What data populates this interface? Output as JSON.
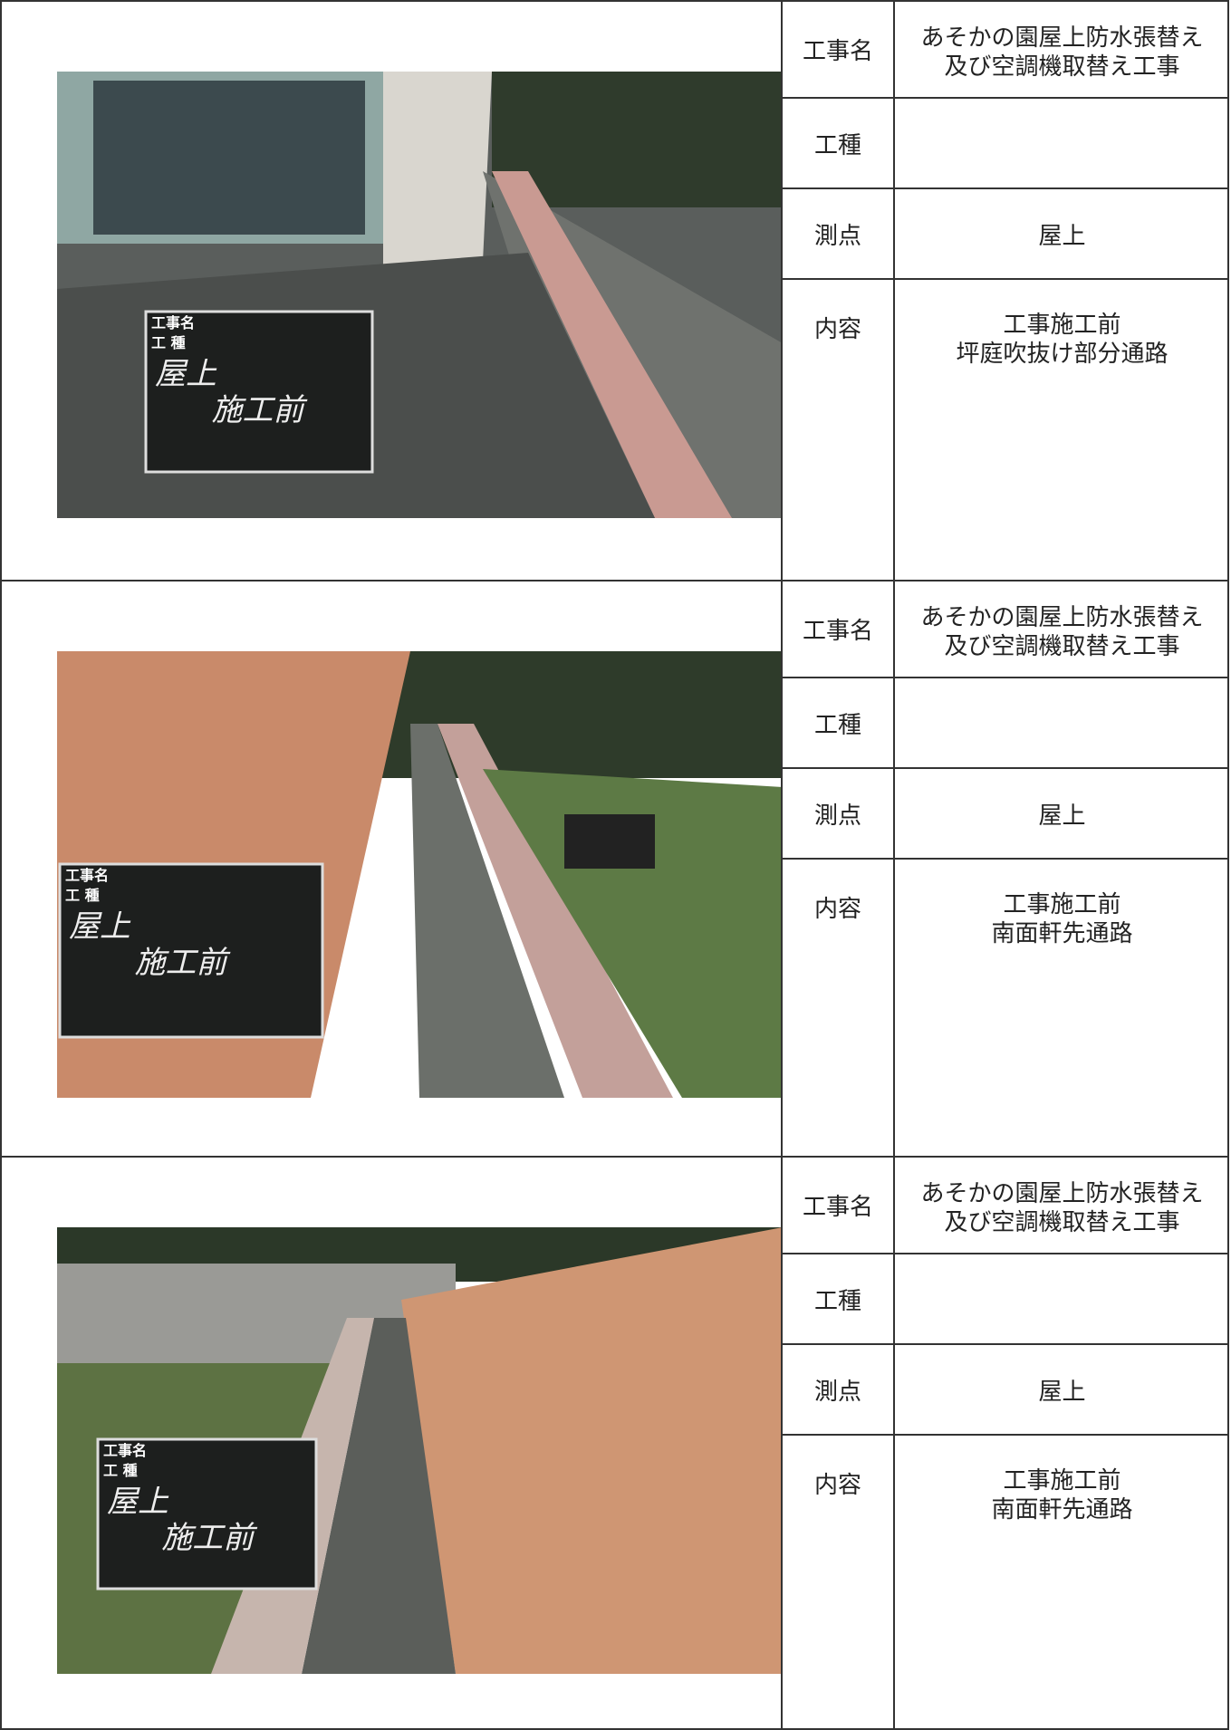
{
  "rows": [
    {
      "photo": {
        "board": {
          "labels": [
            "工事名",
            "工 種"
          ],
          "text": [
            "屋上",
            "施工前"
          ]
        }
      },
      "fields": [
        {
          "label": "工事名",
          "value": [
            "あそかの園屋上防水張替え",
            "及び空調機取替え工事"
          ]
        },
        {
          "label": "工種"
        },
        {
          "label": "測点",
          "value": [
            "屋上"
          ]
        },
        {
          "label": "内容",
          "value": [
            "工事施工前",
            "坪庭吹抜け部分通路"
          ]
        }
      ]
    },
    {
      "photo": {
        "board": {
          "labels": [
            "工事名",
            "工 種"
          ],
          "text": [
            "屋上",
            "施工前"
          ]
        }
      },
      "fields": [
        {
          "label": "工事名",
          "value": [
            "あそかの園屋上防水張替え",
            "及び空調機取替え工事"
          ]
        },
        {
          "label": "工種"
        },
        {
          "label": "測点",
          "value": [
            "屋上"
          ]
        },
        {
          "label": "内容",
          "value": [
            "工事施工前",
            "南面軒先通路"
          ]
        }
      ]
    },
    {
      "photo": {
        "board": {
          "labels": [
            "工事名",
            "工 種"
          ],
          "text": [
            "屋上",
            "施工前"
          ]
        }
      },
      "fields": [
        {
          "label": "工事名",
          "value": [
            "あそかの園屋上防水張替え",
            "及び空調機取替え工事"
          ]
        },
        {
          "label": "工種"
        },
        {
          "label": "測点",
          "value": [
            "屋上"
          ]
        },
        {
          "label": "内容",
          "value": [
            "工事施工前",
            "南面軒先通路"
          ]
        }
      ]
    }
  ]
}
